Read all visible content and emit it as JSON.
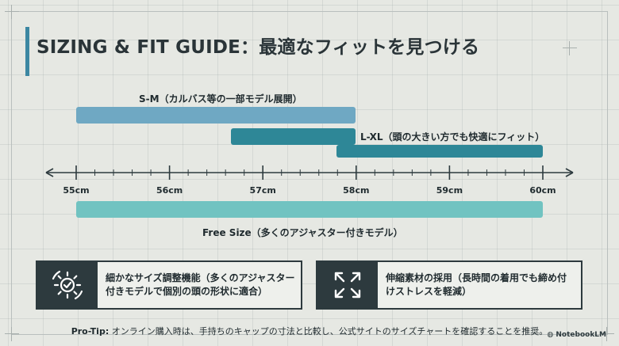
{
  "title": "SIZING & FIT GUIDE：最適なフィットを見つける",
  "chart_data": {
    "type": "range",
    "axis": {
      "min": 55,
      "max": 60,
      "unit": "cm",
      "major_ticks": [
        55,
        56,
        57,
        58,
        59,
        60
      ],
      "tick_labels": [
        "55cm",
        "56cm",
        "57cm",
        "58cm",
        "59cm",
        "60cm"
      ],
      "minor_step": 0.2
    },
    "ranges": [
      {
        "label": "S-M（カルバス等の一部モデル展開）",
        "start": 55,
        "end": 58
      },
      {
        "label": "L-XL（頭の大きい方でも快適にフィット）",
        "start": 56.7,
        "end": 60
      },
      {
        "label": "Free Size（多くのアジャスター付きモデル）",
        "start": 55,
        "end": 60
      }
    ]
  },
  "cards": [
    {
      "icon": "gear-adjust-icon",
      "line1": "細かなサイズ調整機能（多くのアジャスター",
      "line2": "付きモデルで個別の頭の形状に適合）"
    },
    {
      "icon": "expand-arrows-icon",
      "line1": "伸縮素材の採用（長時間の着用でも締め付",
      "line2": "けストレスを軽減）"
    }
  ],
  "protip": {
    "label": "Pro-Tip:",
    "text": " オンライン購入時は、手持ちのキャップの寸法と比較し、公式サイトのサイズチャートを確認することを推奨。"
  },
  "brand": "NotebookLM",
  "colors": {
    "sm_bar": "#6fa8c3",
    "lxl_bar": "#2e8797",
    "free_bar": "#71c3c1",
    "accent": "#3c87a2",
    "dark": "#2d3a3e"
  }
}
